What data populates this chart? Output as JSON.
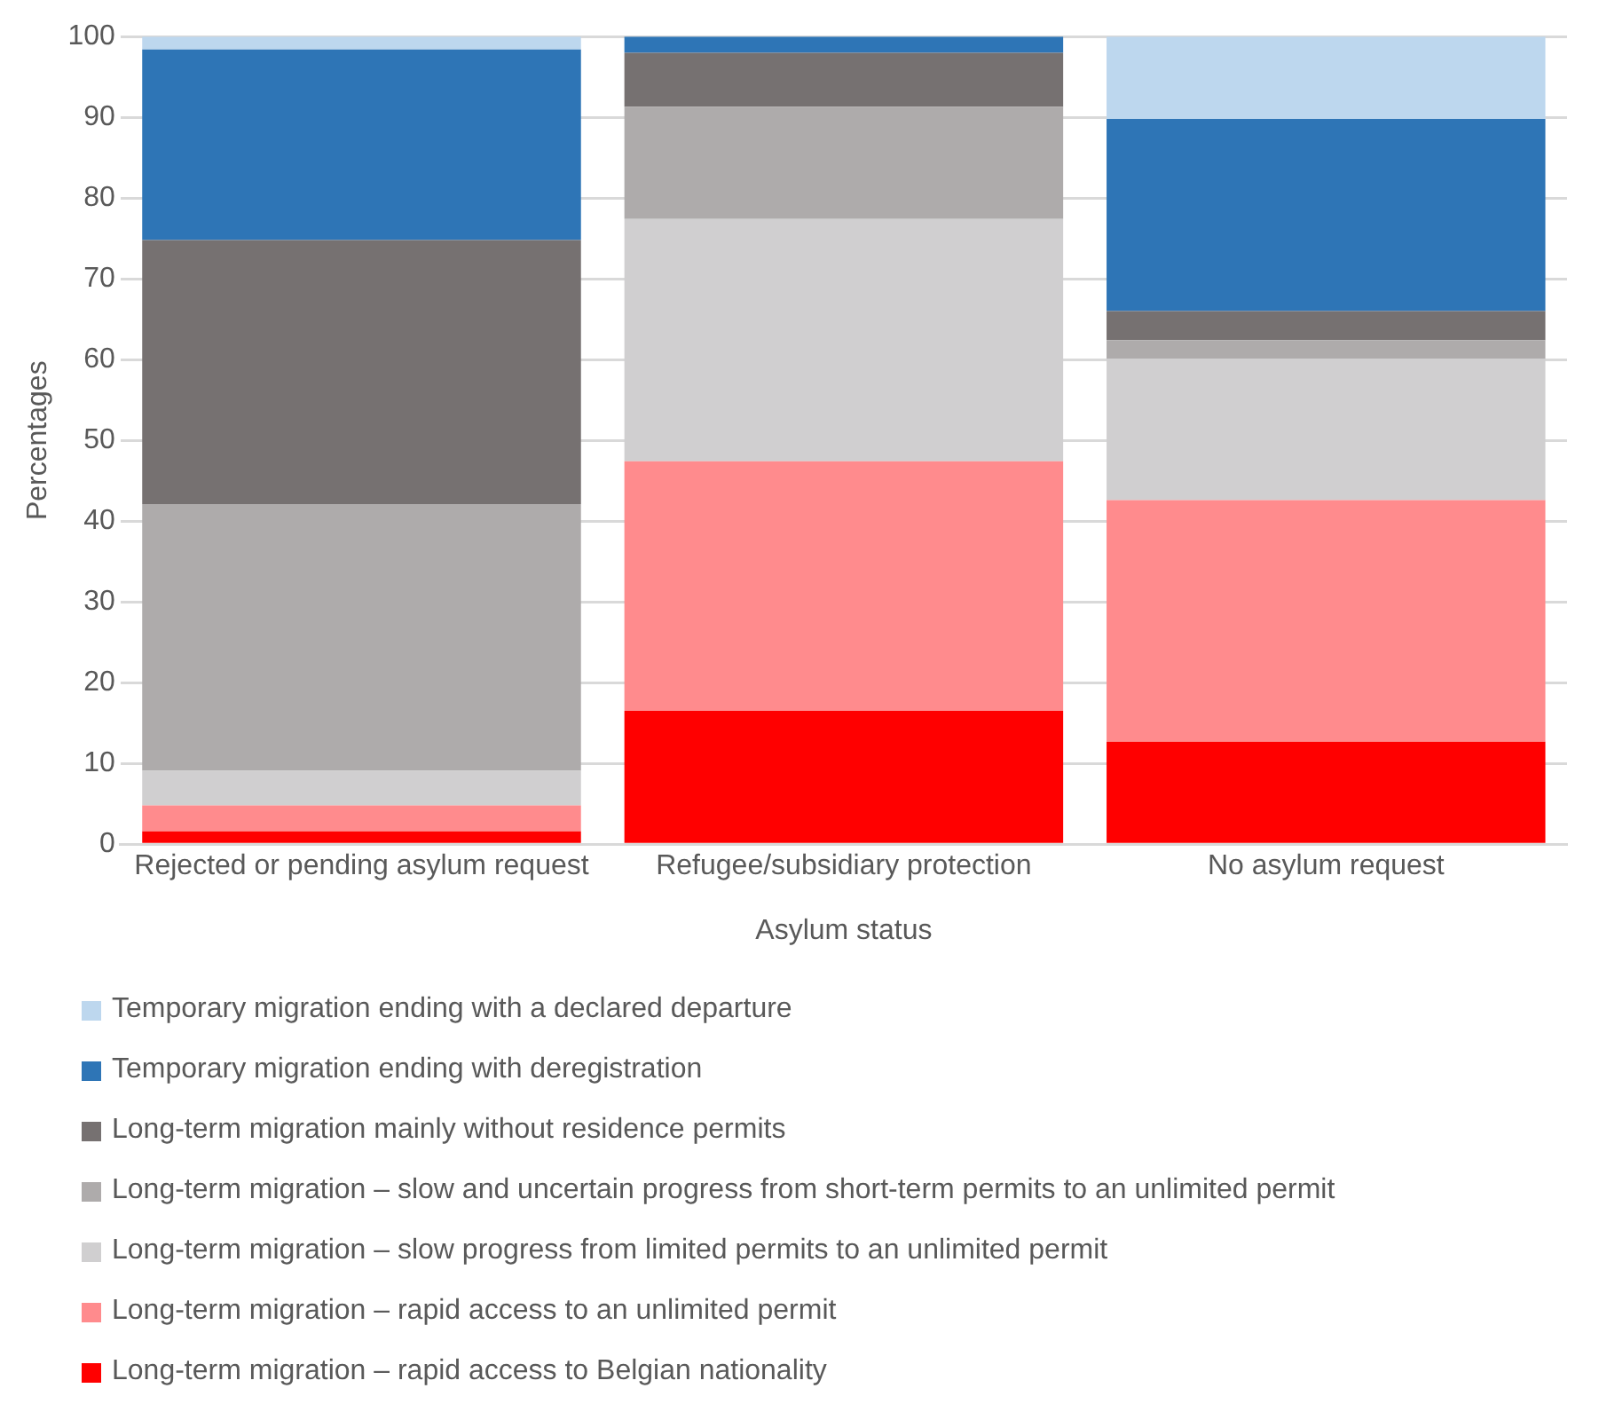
{
  "chart_data": {
    "type": "bar",
    "stacked": true,
    "xlabel": "Asylum status",
    "ylabel": "Percentages",
    "categories": [
      "Rejected or pending asylum request",
      "Refugee/subsidiary protection",
      "No asylum request"
    ],
    "series": [
      {
        "name": "Long-term migration – rapid access to Belgian nationality",
        "color": "#ff0000",
        "values": [
          1.6,
          16.5,
          12.7
        ]
      },
      {
        "name": "Long-term migration – rapid access to an unlimited permit",
        "color": "#ff8b8d",
        "values": [
          3.2,
          30.9,
          29.9
        ]
      },
      {
        "name": "Long-term migration – slow progress from limited permits to an unlimited permit",
        "color": "#d0cfd0",
        "values": [
          4.3,
          30.0,
          17.5
        ]
      },
      {
        "name": "Long-term migration – slow and uncertain progress from short-term permits to an unlimited permit",
        "color": "#aeabab",
        "values": [
          33.0,
          13.9,
          2.3
        ]
      },
      {
        "name": "Long-term migration mainly without residence permits",
        "color": "#767171",
        "values": [
          32.7,
          6.7,
          3.6
        ]
      },
      {
        "name": "Temporary migration ending with deregistration",
        "color": "#2e75b6",
        "values": [
          23.6,
          2.0,
          23.8
        ]
      },
      {
        "name": "Temporary migration ending with a declared departure",
        "color": "#bdd7ee",
        "values": [
          1.6,
          0,
          10.2
        ]
      }
    ],
    "ylim": [
      0,
      100
    ],
    "yticks": [
      0,
      10,
      20,
      30,
      40,
      50,
      60,
      70,
      80,
      90,
      100
    ],
    "grid": "y",
    "legend": "bottom"
  }
}
